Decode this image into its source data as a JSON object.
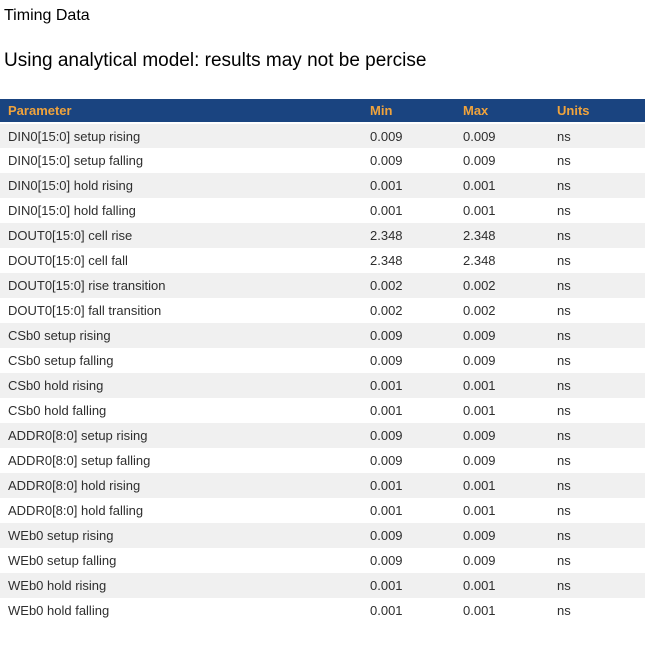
{
  "page": {
    "title": "Timing Data",
    "subtitle": "Using analytical model: results may not be percise"
  },
  "colors": {
    "header_bg": "#1A4480",
    "header_text": "#F0A33C",
    "stripe_bg": "#F0F0F0",
    "row_text": "#2E2E2E",
    "heading_text": "#000000"
  },
  "table": {
    "columns": [
      {
        "key": "parameter",
        "label": "Parameter"
      },
      {
        "key": "min",
        "label": "Min"
      },
      {
        "key": "max",
        "label": "Max"
      },
      {
        "key": "units",
        "label": "Units"
      }
    ],
    "rows": [
      {
        "parameter": "DIN0[15:0] setup rising",
        "min": "0.009",
        "max": "0.009",
        "units": "ns"
      },
      {
        "parameter": "DIN0[15:0] setup falling",
        "min": "0.009",
        "max": "0.009",
        "units": "ns"
      },
      {
        "parameter": "DIN0[15:0] hold rising",
        "min": "0.001",
        "max": "0.001",
        "units": "ns"
      },
      {
        "parameter": "DIN0[15:0] hold falling",
        "min": "0.001",
        "max": "0.001",
        "units": "ns"
      },
      {
        "parameter": "DOUT0[15:0] cell rise",
        "min": "2.348",
        "max": "2.348",
        "units": "ns"
      },
      {
        "parameter": "DOUT0[15:0] cell fall",
        "min": "2.348",
        "max": "2.348",
        "units": "ns"
      },
      {
        "parameter": "DOUT0[15:0] rise transition",
        "min": "0.002",
        "max": "0.002",
        "units": "ns"
      },
      {
        "parameter": "DOUT0[15:0] fall transition",
        "min": "0.002",
        "max": "0.002",
        "units": "ns"
      },
      {
        "parameter": "CSb0 setup rising",
        "min": "0.009",
        "max": "0.009",
        "units": "ns"
      },
      {
        "parameter": "CSb0 setup falling",
        "min": "0.009",
        "max": "0.009",
        "units": "ns"
      },
      {
        "parameter": "CSb0 hold rising",
        "min": "0.001",
        "max": "0.001",
        "units": "ns"
      },
      {
        "parameter": "CSb0 hold falling",
        "min": "0.001",
        "max": "0.001",
        "units": "ns"
      },
      {
        "parameter": "ADDR0[8:0] setup rising",
        "min": "0.009",
        "max": "0.009",
        "units": "ns"
      },
      {
        "parameter": "ADDR0[8:0] setup falling",
        "min": "0.009",
        "max": "0.009",
        "units": "ns"
      },
      {
        "parameter": "ADDR0[8:0] hold rising",
        "min": "0.001",
        "max": "0.001",
        "units": "ns"
      },
      {
        "parameter": "ADDR0[8:0] hold falling",
        "min": "0.001",
        "max": "0.001",
        "units": "ns"
      },
      {
        "parameter": "WEb0 setup rising",
        "min": "0.009",
        "max": "0.009",
        "units": "ns"
      },
      {
        "parameter": "WEb0 setup falling",
        "min": "0.009",
        "max": "0.009",
        "units": "ns"
      },
      {
        "parameter": "WEb0 hold rising",
        "min": "0.001",
        "max": "0.001",
        "units": "ns"
      },
      {
        "parameter": "WEb0 hold falling",
        "min": "0.001",
        "max": "0.001",
        "units": "ns"
      }
    ]
  }
}
